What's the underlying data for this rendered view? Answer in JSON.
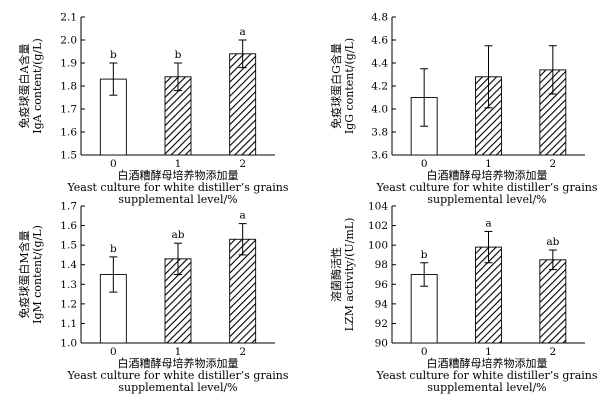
{
  "chart_data": [
    {
      "type": "bar",
      "categories": [
        "0",
        "1",
        "2"
      ],
      "values": [
        1.83,
        1.84,
        1.94
      ],
      "errors": [
        0.07,
        0.06,
        0.06
      ],
      "significance": [
        "b",
        "b",
        "a"
      ],
      "ylim": [
        1.5,
        2.1
      ],
      "yticks": [
        "1.5",
        "1.6",
        "1.7",
        "1.8",
        "1.9",
        "2.0",
        "2.1"
      ],
      "ylabel_cn": "免疫球蛋白A含量",
      "ylabel_en": "IgA content/(g/L)",
      "xlabel_cn": "白酒糟酵母培养物添加量",
      "xlabel_en_1": "Yeast culture for white distiller’s grains",
      "xlabel_en_2": "supplemental level/%",
      "bar_styles": [
        "plain",
        "hatched",
        "hatched"
      ]
    },
    {
      "type": "bar",
      "categories": [
        "0",
        "1",
        "2"
      ],
      "values": [
        4.1,
        4.28,
        4.34
      ],
      "errors": [
        0.25,
        0.27,
        0.21
      ],
      "significance": [
        "",
        "",
        ""
      ],
      "ylim": [
        3.6,
        4.8
      ],
      "yticks": [
        "3.6",
        "3.8",
        "4.0",
        "4.2",
        "4.4",
        "4.6",
        "4.8"
      ],
      "ylabel_cn": "免疫球蛋白G含量",
      "ylabel_en": "IgG content/(g/L)",
      "xlabel_cn": "白酒糟酵母培养物添加量",
      "xlabel_en_1": "Yeast culture for white distiller’s grains",
      "xlabel_en_2": "supplemental level/%",
      "bar_styles": [
        "plain",
        "hatched",
        "hatched"
      ]
    },
    {
      "type": "bar",
      "categories": [
        "0",
        "1",
        "2"
      ],
      "values": [
        1.35,
        1.43,
        1.53
      ],
      "errors": [
        0.09,
        0.08,
        0.08
      ],
      "significance": [
        "b",
        "ab",
        "a"
      ],
      "ylim": [
        1.0,
        1.7
      ],
      "yticks": [
        "1.0",
        "1.1",
        "1.2",
        "1.3",
        "1.4",
        "1.5",
        "1.6",
        "1.7"
      ],
      "ylabel_cn": "免疫球蛋白M含量",
      "ylabel_en": "IgM content/(g/L)",
      "xlabel_cn": "白酒糟酵母培养物添加量",
      "xlabel_en_1": "Yeast culture for white distiller’s grains",
      "xlabel_en_2": "supplemental level/%",
      "bar_styles": [
        "plain",
        "hatched",
        "hatched"
      ]
    },
    {
      "type": "bar",
      "categories": [
        "0",
        "1",
        "2"
      ],
      "values": [
        97.0,
        99.8,
        98.5
      ],
      "errors": [
        1.2,
        1.6,
        1.0
      ],
      "significance": [
        "b",
        "a",
        "ab"
      ],
      "ylim": [
        90,
        104
      ],
      "yticks": [
        "90",
        "92",
        "94",
        "96",
        "98",
        "100",
        "102",
        "104"
      ],
      "ylabel_cn": "溶菌酶活性",
      "ylabel_en": "LZM activity/(U/mL)",
      "xlabel_cn": "白酒糟酵母培养物添加量",
      "xlabel_en_1": "Yeast culture for white distiller’s grains",
      "xlabel_en_2": "supplemental level/%",
      "bar_styles": [
        "plain",
        "hatched",
        "hatched"
      ]
    }
  ]
}
